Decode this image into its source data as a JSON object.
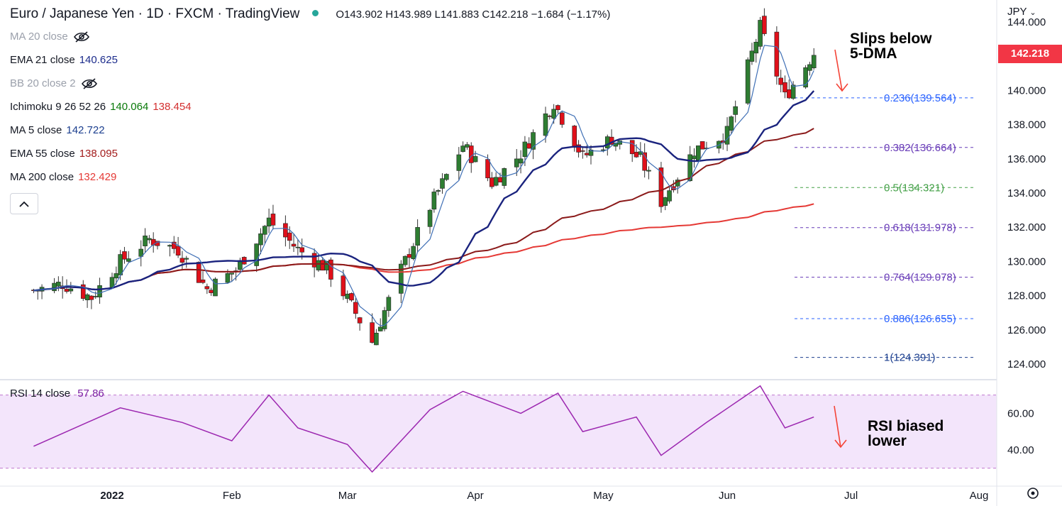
{
  "header": {
    "title": "Euro / Japanese Yen · 1D · FXCM · TradingView",
    "ohlc": "O143.902 H143.989 L141.883 C142.218 −1.684 (−1.17%)"
  },
  "currency": "JPY",
  "indicators": [
    {
      "name": "MA 20 close",
      "value": "",
      "hidden": true,
      "color": "#9ba0ab"
    },
    {
      "name": "EMA 21 close",
      "value": "140.625",
      "hidden": false,
      "color": "#1c2c8c"
    },
    {
      "name": "BB 20 close 2",
      "value": "",
      "hidden": true,
      "color": "#9ba0ab"
    },
    {
      "name": "Ichimoku 9 26 52 26",
      "value": "140.064",
      "value2": "138.454",
      "hidden": false,
      "color": "#0a7a0a",
      "color2": "#d32f2f"
    },
    {
      "name": "MA 5 close",
      "value": "142.722",
      "hidden": false,
      "color": "#1c3f8f"
    },
    {
      "name": "EMA 55 close",
      "value": "138.095",
      "hidden": false,
      "color": "#a31c1c"
    },
    {
      "name": "MA 200 close",
      "value": "132.429",
      "hidden": false,
      "color": "#e53935"
    }
  ],
  "rsi": {
    "label": "RSI 14 close",
    "value": "57.86"
  },
  "last_price": "142.218",
  "annotations": [
    {
      "line1": "Slips below",
      "line2": "5-DMA"
    },
    {
      "line1": "RSI biased",
      "line2": "lower"
    }
  ],
  "chart_data": {
    "type": "candlestick",
    "ylim": [
      123,
      145
    ],
    "y_ticks": [
      "124.000",
      "126.000",
      "128.000",
      "130.000",
      "132.000",
      "134.000",
      "136.000",
      "138.000",
      "140.000",
      "144.000"
    ],
    "rsi_ticks": [
      "40.00",
      "60.00"
    ],
    "x_labels": [
      {
        "label": "2022",
        "date": "2022-01-03"
      },
      {
        "label": "Feb",
        "date": "2022-02-01"
      },
      {
        "label": "Mar",
        "date": "2022-03-01"
      },
      {
        "label": "Apr",
        "date": "2022-04-01"
      },
      {
        "label": "May",
        "date": "2022-05-02"
      },
      {
        "label": "Jun",
        "date": "2022-06-01"
      },
      {
        "label": "Jul",
        "date": "2022-07-01"
      },
      {
        "label": "Aug",
        "date": "2022-08-01"
      }
    ],
    "fib_levels": [
      {
        "label": "0.236(139.564)",
        "value": 139.564,
        "color": "#2962ff"
      },
      {
        "label": "0.382(136.664)",
        "value": 136.664,
        "color": "#673ab7"
      },
      {
        "label": "0.5(134.321)",
        "value": 134.321,
        "color": "#43a047"
      },
      {
        "label": "0.618(131.978)",
        "value": 131.978,
        "color": "#673ab7"
      },
      {
        "label": "0.764(129.078)",
        "value": 129.078,
        "color": "#673ab7"
      },
      {
        "label": "0.886(126.655)",
        "value": 126.655,
        "color": "#2962ff"
      },
      {
        "label": "1(124.391)",
        "value": 124.391,
        "color": "#1c3f8f"
      }
    ],
    "close_path": [
      [
        "2021-12-15",
        128.3
      ],
      [
        "2021-12-22",
        128.7
      ],
      [
        "2021-12-29",
        127.9
      ],
      [
        "2022-01-05",
        130.0
      ],
      [
        "2022-01-12",
        131.3
      ],
      [
        "2022-01-19",
        130.7
      ],
      [
        "2022-01-26",
        128.4
      ],
      [
        "2022-02-02",
        129.5
      ],
      [
        "2022-02-10",
        132.4
      ],
      [
        "2022-02-17",
        130.7
      ],
      [
        "2022-02-24",
        129.6
      ],
      [
        "2022-03-01",
        127.8
      ],
      [
        "2022-03-07",
        125.3
      ],
      [
        "2022-03-14",
        129.5
      ],
      [
        "2022-03-21",
        133.2
      ],
      [
        "2022-03-29",
        136.8
      ],
      [
        "2022-04-05",
        134.6
      ],
      [
        "2022-04-12",
        136.3
      ],
      [
        "2022-04-20",
        139.3
      ],
      [
        "2022-04-27",
        136.1
      ],
      [
        "2022-05-04",
        137.2
      ],
      [
        "2022-05-11",
        136.0
      ],
      [
        "2022-05-16",
        133.5
      ],
      [
        "2022-05-24",
        136.5
      ],
      [
        "2022-06-01",
        137.5
      ],
      [
        "2022-06-09",
        143.7
      ],
      [
        "2022-06-15",
        139.6
      ],
      [
        "2022-06-22",
        142.2
      ]
    ],
    "rsi_path": [
      [
        "2021-12-15",
        42
      ],
      [
        "2022-01-05",
        63
      ],
      [
        "2022-01-20",
        55
      ],
      [
        "2022-02-01",
        45
      ],
      [
        "2022-02-10",
        70
      ],
      [
        "2022-02-17",
        52
      ],
      [
        "2022-03-01",
        43
      ],
      [
        "2022-03-07",
        28
      ],
      [
        "2022-03-21",
        62
      ],
      [
        "2022-03-29",
        72
      ],
      [
        "2022-04-12",
        60
      ],
      [
        "2022-04-21",
        71
      ],
      [
        "2022-04-27",
        50
      ],
      [
        "2022-05-10",
        58
      ],
      [
        "2022-05-16",
        37
      ],
      [
        "2022-05-27",
        55
      ],
      [
        "2022-06-09",
        75
      ],
      [
        "2022-06-15",
        52
      ],
      [
        "2022-06-22",
        58
      ]
    ]
  }
}
